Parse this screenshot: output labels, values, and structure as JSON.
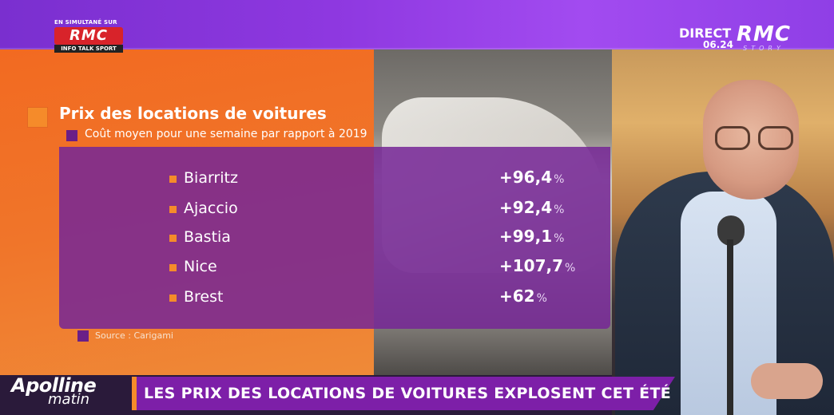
{
  "broadcast": {
    "simulcast_label": "EN SIMULTANÉ SUR",
    "simulcast_logo": "RMC",
    "simulcast_sub": "INFO TALK SPORT",
    "live_label": "DIRECT",
    "time": "06.24",
    "channel_logo": "RMC",
    "channel_sub": "STORY"
  },
  "infographic": {
    "title": "Prix des locations de voitures",
    "subtitle": "Coût moyen pour une semaine par rapport à 2019",
    "rows": [
      {
        "city": "Biarritz",
        "value": "+96,4",
        "unit": "%"
      },
      {
        "city": "Ajaccio",
        "value": "+92,4",
        "unit": "%"
      },
      {
        "city": "Bastia",
        "value": "+99,1",
        "unit": "%"
      },
      {
        "city": "Nice",
        "value": "+107,7",
        "unit": "%"
      },
      {
        "city": "Brest",
        "value": "+62",
        "unit": "%"
      }
    ],
    "source": "Source : Carigami"
  },
  "show": {
    "name_line1": "Apolline",
    "name_line2": "matin"
  },
  "banner": {
    "headline": "LES PRIX DES LOCATIONS DE VOITURES EXPLOSENT CET ÉTÉ"
  },
  "colors": {
    "accent_orange": "#f58b2a",
    "purple": "#7d1fa8",
    "rmc_red": "#d8232a"
  }
}
